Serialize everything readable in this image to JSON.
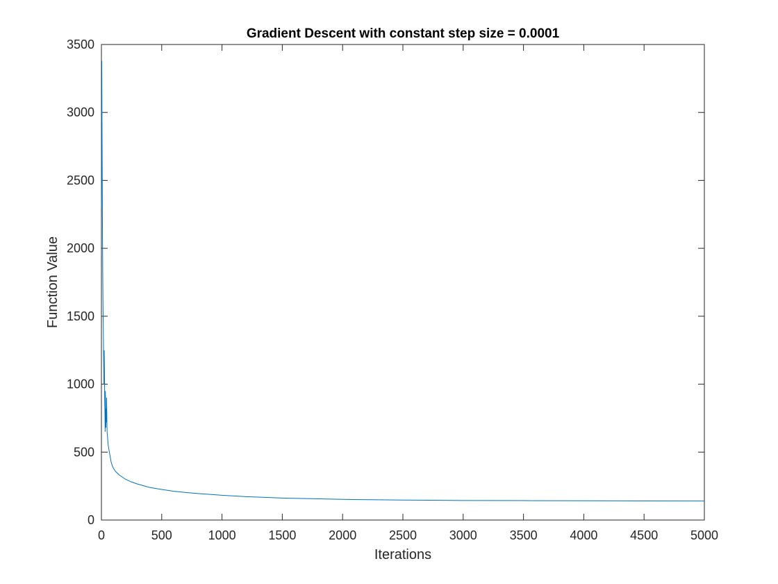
{
  "chart_data": {
    "type": "line",
    "title": "Gradient Descent with constant step size = 0.0001",
    "xlabel": "Iterations",
    "ylabel": "Function Value",
    "xlim": [
      0,
      5000
    ],
    "ylim": [
      0,
      3500
    ],
    "xticks": [
      0,
      500,
      1000,
      1500,
      2000,
      2500,
      3000,
      3500,
      4000,
      4500,
      5000
    ],
    "yticks": [
      0,
      500,
      1000,
      1500,
      2000,
      2500,
      3000,
      3500
    ],
    "xtick_labels": [
      "0",
      "500",
      "1000",
      "1500",
      "2000",
      "2500",
      "3000",
      "3500",
      "4000",
      "4500",
      "5000"
    ],
    "ytick_labels": [
      "0",
      "500",
      "1000",
      "1500",
      "2000",
      "2500",
      "3000",
      "3500"
    ],
    "grid": false,
    "series": [
      {
        "color": "#0072BD",
        "x": [
          1,
          3,
          5,
          7,
          9,
          11,
          13,
          15,
          17,
          19,
          21,
          23,
          25,
          27,
          29,
          31,
          33,
          35,
          37,
          39,
          41,
          43,
          45,
          47,
          50,
          55,
          60,
          70,
          80,
          90,
          100,
          120,
          150,
          200,
          250,
          300,
          400,
          500,
          600,
          700,
          800,
          1000,
          1200,
          1500,
          2000,
          2500,
          3000,
          3500,
          4000,
          4500,
          5000
        ],
        "y": [
          2300,
          3380,
          2900,
          2500,
          2100,
          1800,
          1600,
          1450,
          1300,
          1150,
          1000,
          1250,
          1100,
          900,
          800,
          650,
          950,
          780,
          680,
          820,
          720,
          900,
          760,
          650,
          620,
          560,
          530,
          480,
          430,
          400,
          380,
          355,
          330,
          300,
          280,
          265,
          240,
          225,
          212,
          203,
          195,
          182,
          172,
          162,
          152,
          147,
          144,
          143,
          142,
          141,
          140
        ]
      }
    ]
  }
}
